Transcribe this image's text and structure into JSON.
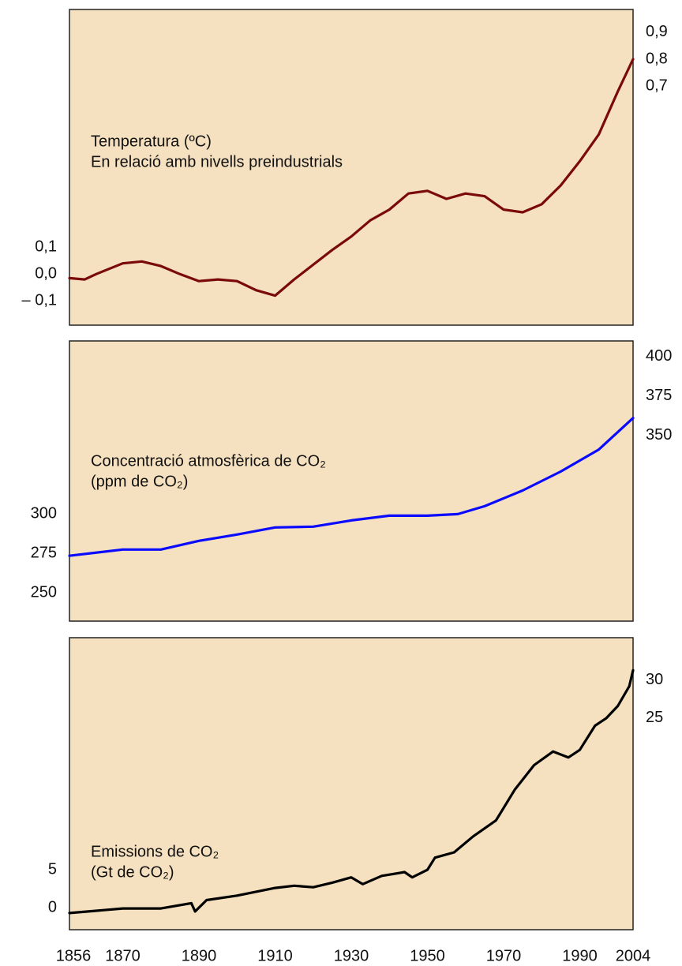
{
  "chart_data": [
    {
      "type": "line",
      "title": "Temperatura (ºC)",
      "subtitle": "En relació amb nivells preindustrials",
      "color": "#7a0a0a",
      "x": [
        1856,
        1860,
        1863,
        1870,
        1875,
        1880,
        1885,
        1890,
        1895,
        1900,
        1905,
        1910,
        1915,
        1920,
        1925,
        1930,
        1935,
        1940,
        1945,
        1950,
        1955,
        1960,
        1965,
        1970,
        1975,
        1980,
        1985,
        1990,
        1995,
        2000,
        2004
      ],
      "values": [
        -0.015,
        -0.02,
        0,
        0.04,
        0.047,
        0.03,
        0,
        -0.026,
        -0.02,
        -0.026,
        -0.06,
        -0.08,
        -0.02,
        0.035,
        0.09,
        0.14,
        0.2,
        0.24,
        0.3,
        0.31,
        0.28,
        0.3,
        0.29,
        0.24,
        0.23,
        0.26,
        0.33,
        0.42,
        0.52,
        0.68,
        0.8
      ],
      "xlim": [
        1856,
        2004
      ],
      "ylim": [
        -0.19,
        0.985
      ],
      "yticks": [
        {
          "value": 0.1,
          "label": "0,1"
        },
        {
          "value": 0,
          "label": "0,0"
        },
        {
          "value": -0.1,
          "label": "– 0,1"
        }
      ],
      "y2lim": [
        -0.19,
        0.985
      ],
      "y2ticks": [
        {
          "value": 0.9,
          "label": "0,9"
        },
        {
          "value": 0.8,
          "label": "0,8"
        },
        {
          "value": 0.7,
          "label": "0,7"
        }
      ]
    },
    {
      "type": "line",
      "title": "Concentració atmosfèrica de CO₂",
      "subtitle": "(ppm de CO₂)",
      "color": "#0a0aff",
      "x": [
        1856,
        1870,
        1880,
        1890,
        1900,
        1910,
        1920,
        1930,
        1940,
        1950,
        1958,
        1965,
        1975,
        1985,
        1995,
        2004
      ],
      "values": [
        273.5,
        277.5,
        277.5,
        283,
        287,
        291.5,
        292,
        296,
        299,
        299,
        300,
        305,
        315,
        327,
        341,
        361
      ],
      "xlim": [
        1856,
        2004
      ],
      "ylim": [
        232,
        410
      ],
      "yticks": [
        300,
        275,
        250
      ],
      "y2lim": [
        232,
        410
      ],
      "y2ticks": [
        400,
        375,
        350
      ]
    },
    {
      "type": "line",
      "title": "Emissions de CO₂",
      "subtitle": "(Gt de CO₂)",
      "color": "#000000",
      "x": [
        1856,
        1870,
        1880,
        1888,
        1889,
        1892,
        1900,
        1910,
        1915,
        1920,
        1925,
        1930,
        1933,
        1938,
        1944,
        1946,
        1950,
        1952,
        1957,
        1962,
        1968,
        1973,
        1978,
        1983,
        1987,
        1990,
        1994,
        1997,
        2000,
        2003,
        2004
      ],
      "values": [
        -0.7,
        -0.1,
        -0.1,
        0.6,
        -0.5,
        1.0,
        1.6,
        2.6,
        2.9,
        2.7,
        3.3,
        4.0,
        3.1,
        4.2,
        4.7,
        4.0,
        5.0,
        6.6,
        7.3,
        9.4,
        11.5,
        15.6,
        18.8,
        20.6,
        19.8,
        20.8,
        24,
        25,
        26.6,
        29.2,
        31.3
      ],
      "xlim": [
        1856,
        2004
      ],
      "ylim": [
        -2.9,
        35.6
      ],
      "yticks": [
        5,
        0
      ],
      "y2lim": [
        -2.9,
        35.6
      ],
      "y2ticks": [
        30,
        25
      ],
      "xticks": [
        1856,
        1870,
        1890,
        1910,
        1930,
        1950,
        1970,
        1990,
        2004
      ]
    }
  ]
}
